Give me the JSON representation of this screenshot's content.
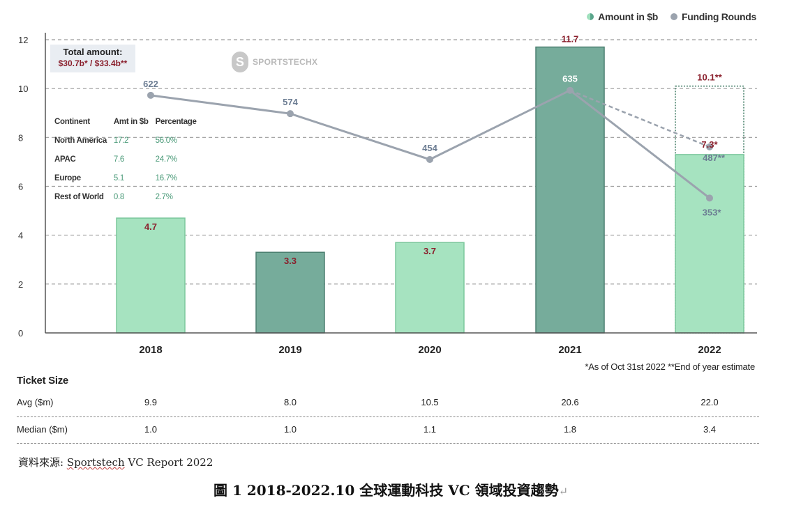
{
  "legend": {
    "amount_label": "Amount in $b",
    "rounds_label": "Funding Rounds"
  },
  "total_box": {
    "title": "Total amount:",
    "values": "$30.7b* / $33.4b**"
  },
  "watermark": {
    "text": "SPORTSTECHX",
    "icon": "sportstechx-logo-icon"
  },
  "continent_table": {
    "headers": [
      "Continent",
      "Amt in $b",
      "Percentage"
    ],
    "rows": [
      [
        "North America",
        "17.2",
        "56.0%"
      ],
      [
        "APAC",
        "7.6",
        "24.7%"
      ],
      [
        "Europe",
        "5.1",
        "16.7%"
      ],
      [
        "Rest of World",
        "0.8",
        "2.7%"
      ]
    ]
  },
  "footnote": "*As of Oct 31st 2022  **End of year estimate",
  "ticket_size": {
    "title": "Ticket Size",
    "rows": [
      {
        "label": "Avg ($m)",
        "values": [
          "9.9",
          "8.0",
          "10.5",
          "20.6",
          "22.0"
        ]
      },
      {
        "label": "Median ($m)",
        "values": [
          "1.0",
          "1.0",
          "1.1",
          "1.8",
          "3.4"
        ]
      }
    ]
  },
  "source": {
    "prefix": "資料來源: ",
    "link": "Sportstech",
    "suffix": " VC Report 2022"
  },
  "caption": {
    "text": "圖 1 2018-2022.10  全球運動科技 VC 領域投資趨勢",
    "mark": "↵"
  },
  "colors": {
    "bar_light": "#a6e3c0",
    "bar_dark": "#76ac9b",
    "bar_light_stroke": "#7bc79c",
    "bar_dark_stroke": "#4c7f70",
    "line": "#9ba3ae",
    "label_red": "#8a1f2c",
    "label_grey": "#6b7c92",
    "grid": "#9a9a9a",
    "estimate_box": "#3f7a62"
  },
  "chart_data": {
    "type": "bar",
    "categories": [
      "2018",
      "2019",
      "2020",
      "2021",
      "2022"
    ],
    "ylim": [
      0,
      12
    ],
    "yticks": [
      0,
      2,
      4,
      6,
      8,
      10,
      12
    ],
    "grid": true,
    "legend_position": "top-right",
    "series": [
      {
        "name": "Amount in $b",
        "type": "bar",
        "values": [
          4.7,
          3.3,
          3.7,
          11.7,
          7.3
        ],
        "labels": [
          "4.7",
          "3.3",
          "3.7",
          "11.7",
          "7.3*"
        ],
        "styles": [
          "light",
          "dark",
          "light",
          "dark",
          "light"
        ]
      },
      {
        "name": "Amount in $b (end of year estimate)",
        "type": "bar-outline",
        "category": "2022",
        "value": 10.1,
        "label": "10.1**"
      },
      {
        "name": "Funding Rounds",
        "type": "line",
        "values": [
          622,
          574,
          454,
          635,
          353
        ],
        "labels": [
          "622",
          "574",
          "454",
          "635",
          "353*"
        ]
      },
      {
        "name": "Funding Rounds (end of year estimate)",
        "type": "line-dashed",
        "from_category": "2021",
        "category": "2022",
        "value": 487,
        "label": "487**"
      }
    ]
  }
}
